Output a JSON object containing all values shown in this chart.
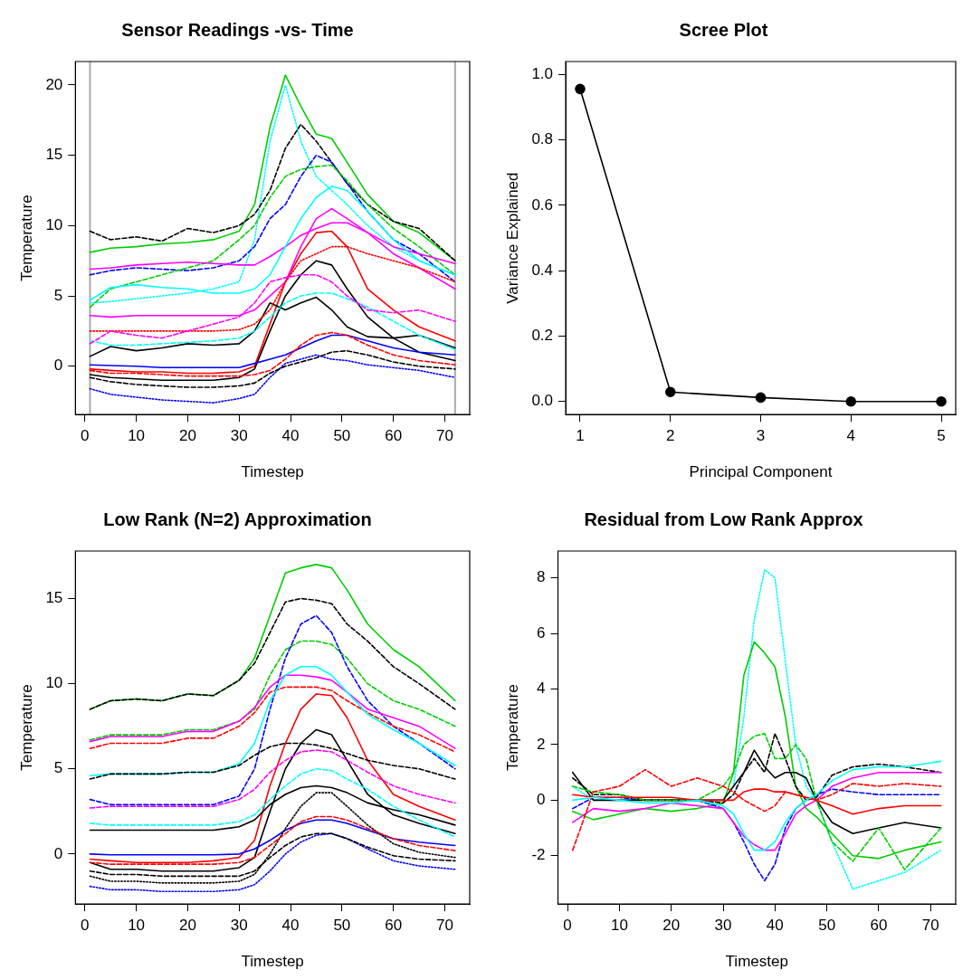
{
  "chart_data": [
    {
      "type": "line",
      "title": "Sensor Readings -vs- Time",
      "xlabel": "Timestep",
      "ylabel": "Temperature",
      "x": [
        1,
        5,
        10,
        15,
        20,
        25,
        30,
        33,
        36,
        39,
        42,
        45,
        48,
        51,
        55,
        60,
        65,
        72
      ],
      "xlim": [
        -1.84,
        74.84
      ],
      "xticks": [
        0,
        10,
        20,
        30,
        40,
        50,
        60,
        70
      ],
      "ylim": [
        -3.44,
        21.67
      ],
      "yticks": [
        0,
        5,
        10,
        15,
        20
      ],
      "ref_lines": [
        {
          "axis": "x",
          "value": 1,
          "color": "#aaaaaa"
        },
        {
          "axis": "x",
          "value": 72,
          "color": "#aaaaaa"
        }
      ],
      "series": [
        {
          "color": "#00cd00",
          "line_style": "solid",
          "values": [
            8.1,
            8.4,
            8.5,
            8.7,
            8.8,
            9.0,
            9.6,
            11.5,
            17,
            20.7,
            18.5,
            16.5,
            16.2,
            14.5,
            12.2,
            10.3,
            9.5,
            7.5
          ]
        },
        {
          "color": "#00ffff",
          "line_style": "dotted",
          "values": [
            4.5,
            4.6,
            4.8,
            5.0,
            5.2,
            5.5,
            6,
            9,
            16,
            20,
            16,
            13.5,
            12.5,
            11.5,
            10,
            8.5,
            7.5,
            6.5
          ]
        },
        {
          "color": "#000000",
          "line_style": "dashed",
          "values": [
            9.6,
            9.0,
            9.2,
            8.9,
            9.8,
            9.5,
            10.0,
            10.8,
            12.5,
            15.5,
            17.2,
            16,
            14.5,
            13,
            11.5,
            10.3,
            9.8,
            7.5
          ]
        },
        {
          "color": "#0000ff",
          "line_style": "dashed",
          "values": [
            6.5,
            6.8,
            7.0,
            6.9,
            6.8,
            7.0,
            7.5,
            8.5,
            10.5,
            11.5,
            13.5,
            15,
            14.5,
            13,
            11,
            9,
            8,
            6
          ]
        },
        {
          "color": "#00cd00",
          "line_style": "dashed",
          "values": [
            4.2,
            5.5,
            6,
            6.5,
            7,
            7.5,
            9,
            10,
            12,
            13.5,
            14,
            14.2,
            14.3,
            13.2,
            11.5,
            9.8,
            8.5,
            6.5
          ]
        },
        {
          "color": "#ff0000",
          "line_style": "solid",
          "values": [
            -0.2,
            -0.3,
            -0.4,
            -0.4,
            -0.5,
            -0.5,
            -0.4,
            0,
            3,
            6,
            8,
            9.5,
            9.6,
            8.5,
            5.5,
            4,
            2.8,
            1.8
          ]
        },
        {
          "color": "#000000",
          "line_style": "solid",
          "values": [
            -0.6,
            -0.8,
            -0.9,
            -1,
            -1,
            -1,
            -0.8,
            -0.2,
            2.5,
            5,
            6.5,
            7.5,
            7.2,
            5.5,
            3.5,
            2,
            1,
            0.4
          ]
        },
        {
          "color": "#000000",
          "line_style": "solid",
          "values": [
            0.7,
            1.4,
            1.1,
            1.3,
            1.6,
            1.5,
            1.6,
            2.5,
            4.5,
            4.0,
            4.5,
            4.9,
            4.0,
            2.8,
            2.1,
            2.0,
            2.2,
            1.3
          ]
        },
        {
          "color": "#0000ff",
          "line_style": "solid",
          "values": [
            0.1,
            0.05,
            0,
            -0.1,
            -0.1,
            -0.1,
            -0.1,
            0.2,
            0.5,
            0.8,
            1.3,
            1.8,
            2.2,
            2.2,
            1.8,
            1.3,
            1.0,
            0.8
          ]
        },
        {
          "color": "#0000ff",
          "line_style": "dotted",
          "values": [
            -1.6,
            -2.0,
            -2.2,
            -2.4,
            -2.5,
            -2.6,
            -2.3,
            -2.0,
            -0.8,
            0.2,
            0.5,
            0.8,
            0.5,
            0.4,
            0.1,
            -0.1,
            -0.3,
            -0.8
          ]
        },
        {
          "color": "#ff00ff",
          "line_style": "solid",
          "values": [
            6.9,
            7.0,
            7.2,
            7.3,
            7.4,
            7.3,
            7.2,
            7.2,
            7.8,
            8.5,
            9.3,
            9.8,
            10.2,
            10.2,
            9.5,
            8.5,
            8.0,
            7.3
          ]
        },
        {
          "color": "#ff00ff",
          "line_style": "solid",
          "values": [
            3.6,
            3.5,
            3.6,
            3.6,
            3.6,
            3.6,
            3.6,
            4.0,
            5.0,
            6.0,
            8.5,
            10.5,
            11.2,
            10.5,
            9.5,
            8.0,
            7.0,
            5.5
          ]
        },
        {
          "color": "#00ffff",
          "line_style": "solid",
          "values": [
            4.7,
            5.6,
            5.8,
            5.6,
            5.5,
            5.2,
            5.2,
            5.5,
            6.5,
            8.5,
            10.5,
            12.0,
            12.8,
            12.5,
            11.0,
            9.0,
            7.5,
            6.5
          ]
        },
        {
          "color": "#ff0000",
          "line_style": "dashed",
          "values": [
            -0.3,
            -0.5,
            -0.5,
            -0.6,
            -0.7,
            -0.7,
            -0.7,
            -0.6,
            -0.3,
            0.5,
            1.5,
            2.2,
            2.4,
            2.2,
            1.5,
            0.8,
            0.4,
            0.1
          ]
        },
        {
          "color": "#000000",
          "line_style": "dashed",
          "values": [
            -0.8,
            -1.1,
            -1.3,
            -1.4,
            -1.5,
            -1.5,
            -1.4,
            -1.2,
            -0.5,
            0,
            0.3,
            0.6,
            1,
            1.1,
            0.8,
            0.3,
            0,
            -0.2
          ]
        },
        {
          "color": "#ff0000",
          "line_style": "dotted",
          "values": [
            2.5,
            2.5,
            2.5,
            2.5,
            2.5,
            2.5,
            2.6,
            3,
            4,
            6,
            7.5,
            8,
            8.5,
            8.5,
            8,
            7.5,
            7,
            6
          ]
        },
        {
          "color": "#00ffff",
          "line_style": "dashed",
          "values": [
            1.8,
            1.5,
            1.5,
            1.6,
            1.7,
            1.8,
            2,
            2.5,
            3.5,
            4.5,
            5,
            5.2,
            5.2,
            4.8,
            4.2,
            3.2,
            2.2,
            1.2
          ]
        },
        {
          "color": "#ff00ff",
          "line_style": "dashed",
          "values": [
            1.6,
            2.5,
            2.2,
            2.0,
            2.5,
            3.0,
            3.5,
            4.5,
            6,
            6.3,
            6.5,
            6.5,
            6,
            5,
            4,
            3.8,
            4,
            3.2
          ]
        }
      ]
    },
    {
      "type": "line",
      "title": "Scree Plot",
      "xlabel": "Principal Component",
      "ylabel": "Variance Explained",
      "x": [
        1,
        2,
        3,
        4,
        5
      ],
      "xlim": [
        0.84,
        5.16
      ],
      "xticks": [
        1,
        2,
        3,
        4,
        5
      ],
      "ylim": [
        -0.04,
        1.04
      ],
      "yticks": [
        {
          "value": 0,
          "label": "0.0"
        },
        0.2,
        0.4,
        0.6,
        0.8,
        {
          "value": 1,
          "label": "1.0"
        }
      ],
      "marker": "circle",
      "series": [
        {
          "color": "#000000",
          "line_style": "solid",
          "values": [
            0.956,
            0.029,
            0.012,
            0.0,
            0.0
          ]
        }
      ]
    },
    {
      "type": "line",
      "title": "Low Rank (N=2) Approximation",
      "xlabel": "Timestep",
      "ylabel": "Temperature",
      "x": [
        1,
        5,
        10,
        15,
        20,
        25,
        30,
        33,
        36,
        39,
        42,
        45,
        48,
        51,
        55,
        60,
        65,
        72
      ],
      "xlim": [
        -1.84,
        74.84
      ],
      "xticks": [
        0,
        10,
        20,
        30,
        40,
        50,
        60,
        70
      ],
      "ylim": [
        -2.94,
        17.79
      ],
      "yticks": [
        0,
        5,
        10,
        15
      ],
      "series": [
        {
          "color": "#00cd00",
          "line_style": "solid",
          "values": [
            8.5,
            9.0,
            9.1,
            9.0,
            9.4,
            9.3,
            10.2,
            11.5,
            14,
            16.5,
            16.8,
            17,
            16.8,
            15.5,
            13.5,
            12,
            11,
            9
          ]
        },
        {
          "color": "#000000",
          "line_style": "dashed",
          "values": [
            8.5,
            9,
            9.1,
            9,
            9.4,
            9.3,
            10.2,
            11.2,
            13,
            14.8,
            15,
            14.9,
            14.7,
            13.5,
            12.5,
            11,
            10,
            8.5
          ]
        },
        {
          "color": "#00cd00",
          "line_style": "dashed",
          "values": [
            6.7,
            7,
            7,
            7,
            7.3,
            7.3,
            7.8,
            8.5,
            10.5,
            12,
            12.5,
            12.5,
            12.3,
            11.5,
            10,
            9,
            8.5,
            7.5
          ]
        },
        {
          "color": "#0000ff",
          "line_style": "dashed",
          "values": [
            3.2,
            2.9,
            2.9,
            2.9,
            2.9,
            2.9,
            3.4,
            5,
            8.5,
            11.5,
            13.5,
            14,
            13,
            11,
            9,
            7.5,
            6.5,
            5
          ]
        },
        {
          "color": "#ff00ff",
          "line_style": "solid",
          "values": [
            6.6,
            6.9,
            6.9,
            6.9,
            7.2,
            7.2,
            7.8,
            8.6,
            9.8,
            10.5,
            10.5,
            10.4,
            10.2,
            9.5,
            8.5,
            8,
            7.5,
            6.2
          ]
        },
        {
          "color": "#ff0000",
          "line_style": "dashed",
          "values": [
            6.2,
            6.5,
            6.5,
            6.5,
            6.8,
            6.8,
            7.5,
            8.3,
            9.5,
            9.8,
            9.8,
            9.8,
            9.6,
            9,
            8.3,
            7.5,
            7,
            6
          ]
        },
        {
          "color": "#00ffff",
          "line_style": "solid",
          "values": [
            4.6,
            4.7,
            4.7,
            4.7,
            4.8,
            4.8,
            5.3,
            6.5,
            9,
            10.5,
            11,
            11,
            10.5,
            9.5,
            8.2,
            7.3,
            6.5,
            5.2
          ]
        },
        {
          "color": "#ff0000",
          "line_style": "solid",
          "values": [
            -0.3,
            -0.4,
            -0.5,
            -0.5,
            -0.5,
            -0.4,
            -0.2,
            0.8,
            4,
            6.5,
            8.5,
            9.4,
            9.3,
            8,
            5.5,
            3.5,
            2.8,
            2
          ]
        },
        {
          "color": "#000000",
          "line_style": "solid",
          "values": [
            -0.5,
            -0.9,
            -0.9,
            -1,
            -1,
            -1,
            -0.8,
            -0.2,
            2.5,
            5,
            6.5,
            7.3,
            7,
            5.5,
            3.5,
            2.3,
            1.8,
            1.2
          ]
        },
        {
          "color": "#000000",
          "line_style": "solid",
          "values": [
            1.4,
            1.4,
            1.4,
            1.4,
            1.4,
            1.4,
            1.6,
            2.0,
            2.9,
            3.5,
            3.9,
            4.0,
            3.9,
            3.6,
            3.0,
            2.6,
            2.3,
            1.7
          ]
        },
        {
          "color": "#0000ff",
          "line_style": "solid",
          "values": [
            0,
            -0.05,
            -0.05,
            -0.05,
            -0.05,
            -0.05,
            0,
            0.3,
            0.8,
            1.4,
            1.8,
            2.0,
            2.0,
            1.8,
            1.4,
            0.9,
            0.7,
            0.5
          ]
        },
        {
          "color": "#0000ff",
          "line_style": "dotted",
          "values": [
            -1.9,
            -2.1,
            -2.1,
            -2.2,
            -2.2,
            -2.2,
            -2.1,
            -1.8,
            -1,
            0,
            0.7,
            1.1,
            1.2,
            0.9,
            0.3,
            -0.4,
            -0.7,
            -0.9
          ]
        },
        {
          "color": "#ff00ff",
          "line_style": "dashed",
          "values": [
            2.7,
            2.8,
            2.8,
            2.8,
            2.8,
            2.8,
            3.2,
            3.8,
            4.8,
            5.5,
            6,
            6.1,
            6,
            5.5,
            4.8,
            4,
            3.5,
            3
          ]
        },
        {
          "color": "#00ffff",
          "line_style": "dashed",
          "values": [
            1.8,
            1.7,
            1.7,
            1.7,
            1.7,
            1.7,
            1.9,
            2.3,
            3.2,
            4.0,
            4.7,
            5.0,
            4.9,
            4.4,
            3.8,
            2.8,
            2.0,
            1.0
          ]
        },
        {
          "color": "#000000",
          "line_style": "dashed",
          "values": [
            4.4,
            4.7,
            4.7,
            4.7,
            4.8,
            4.8,
            5.2,
            5.8,
            6.3,
            6.5,
            6.5,
            6.4,
            6.2,
            5.9,
            5.5,
            5.2,
            5,
            4.4
          ]
        },
        {
          "color": "#000000",
          "line_style": "dotted",
          "values": [
            -1.3,
            -1.6,
            -1.6,
            -1.7,
            -1.7,
            -1.7,
            -1.6,
            -1.2,
            0,
            1.5,
            2.8,
            3.6,
            3.6,
            2.8,
            1.7,
            0.6,
            0.1,
            -0.2
          ]
        },
        {
          "color": "#ff0000",
          "line_style": "dashed",
          "values": [
            -0.5,
            -0.6,
            -0.6,
            -0.6,
            -0.6,
            -0.6,
            -0.5,
            -0.2,
            0.5,
            1.2,
            1.9,
            2.2,
            2.2,
            2.0,
            1.5,
            0.9,
            0.5,
            0.2
          ]
        },
        {
          "color": "#000000",
          "line_style": "dashed",
          "values": [
            -1.0,
            -1.2,
            -1.2,
            -1.3,
            -1.3,
            -1.3,
            -1.3,
            -1.0,
            -0.2,
            0.5,
            1.0,
            1.2,
            1.2,
            0.9,
            0.4,
            -0.1,
            -0.3,
            -0.4
          ]
        }
      ]
    },
    {
      "type": "line",
      "title": "Residual from Low Rank Approx",
      "xlabel": "Timestep",
      "ylabel": "Temperature",
      "x": [
        1,
        5,
        10,
        15,
        20,
        25,
        30,
        32,
        34,
        36,
        38,
        40,
        42,
        44,
        46,
        48,
        51,
        55,
        60,
        65,
        72
      ],
      "xlim": [
        -1.84,
        74.84
      ],
      "xticks": [
        0,
        10,
        20,
        30,
        40,
        50,
        60,
        70
      ],
      "ylim": [
        -3.74,
        8.97
      ],
      "yticks": [
        -2,
        0,
        2,
        4,
        6,
        8
      ],
      "series": [
        {
          "color": "#00ffff",
          "line_style": "dotted",
          "values": [
            0.5,
            0,
            0,
            0,
            0,
            0,
            0,
            0.5,
            3,
            6.5,
            8.3,
            8,
            5,
            2,
            0.5,
            0,
            -1.5,
            -3.2,
            -2.9,
            -2.6,
            -1.8
          ]
        },
        {
          "color": "#00cd00",
          "line_style": "solid",
          "values": [
            -0.4,
            -0.7,
            -0.5,
            -0.3,
            -0.4,
            -0.3,
            -0.1,
            1,
            4.5,
            5.7,
            5.3,
            4.8,
            3,
            0.5,
            -0.3,
            -0.6,
            -1.2,
            -2,
            -2.1,
            -1.8,
            -1.5
          ]
        },
        {
          "color": "#0000ff",
          "line_style": "dashed",
          "values": [
            -0.3,
            0.1,
            0.1,
            0,
            0,
            0,
            -0.3,
            -0.8,
            -1.5,
            -2.3,
            -2.9,
            -2.3,
            -1,
            -0.3,
            0,
            0.2,
            0.4,
            0.3,
            0.2,
            0.2,
            0.2
          ]
        },
        {
          "color": "#000000",
          "line_style": "solid",
          "values": [
            1,
            0,
            0,
            0,
            0,
            0,
            0,
            0.5,
            1,
            1.8,
            1.2,
            0.8,
            1,
            1,
            0.8,
            0,
            -0.8,
            -1.2,
            -1,
            -0.8,
            -1
          ]
        },
        {
          "color": "#000000",
          "line_style": "dashed",
          "values": [
            0.8,
            0.2,
            0.2,
            0,
            0,
            0,
            -0.1,
            0.2,
            1,
            1.5,
            1,
            2.4,
            1.5,
            0.5,
            0,
            0.1,
            0.9,
            1.2,
            1.3,
            1.2,
            1
          ]
        },
        {
          "color": "#00cd00",
          "line_style": "dashed",
          "values": [
            0.5,
            0.3,
            0.2,
            0,
            0,
            0,
            0.5,
            1,
            2,
            2.3,
            2.4,
            1.5,
            1.5,
            2,
            1.5,
            0,
            -1.5,
            -2.2,
            -1,
            -2.5,
            -1
          ]
        },
        {
          "color": "#ff00ff",
          "line_style": "solid",
          "values": [
            -0.8,
            -0.3,
            -0.4,
            -0.3,
            -0.1,
            -0.2,
            -0.3,
            -0.8,
            -1.3,
            -1.6,
            -1.8,
            -1.8,
            -1.2,
            -0.5,
            -0.2,
            0,
            0.5,
            0.8,
            1,
            1,
            1
          ]
        },
        {
          "color": "#ff0000",
          "line_style": "dashed",
          "values": [
            -1.8,
            0.3,
            0.5,
            1.1,
            0.5,
            0.8,
            0.5,
            0.3,
            0,
            -0.2,
            -0.4,
            -0.2,
            0.3,
            0.2,
            0.1,
            0,
            0.2,
            0.6,
            0.5,
            0.6,
            0.5
          ]
        },
        {
          "color": "#ff0000",
          "line_style": "solid",
          "values": [
            0.2,
            0.1,
            0.1,
            0.1,
            0.1,
            0,
            0,
            0,
            0.3,
            0.4,
            0.4,
            0.3,
            0.3,
            0.2,
            0.1,
            0,
            -0.2,
            -0.5,
            -0.3,
            -0.2,
            -0.2
          ]
        },
        {
          "color": "#00ffff",
          "line_style": "solid",
          "values": [
            0,
            0.1,
            0,
            -0.1,
            -0.1,
            0,
            -0.2,
            -0.5,
            -1.2,
            -1.8,
            -1.8,
            -1.5,
            -0.8,
            -0.3,
            0,
            0.2,
            0.7,
            1.1,
            1.2,
            1.2,
            1.4
          ]
        }
      ]
    }
  ]
}
